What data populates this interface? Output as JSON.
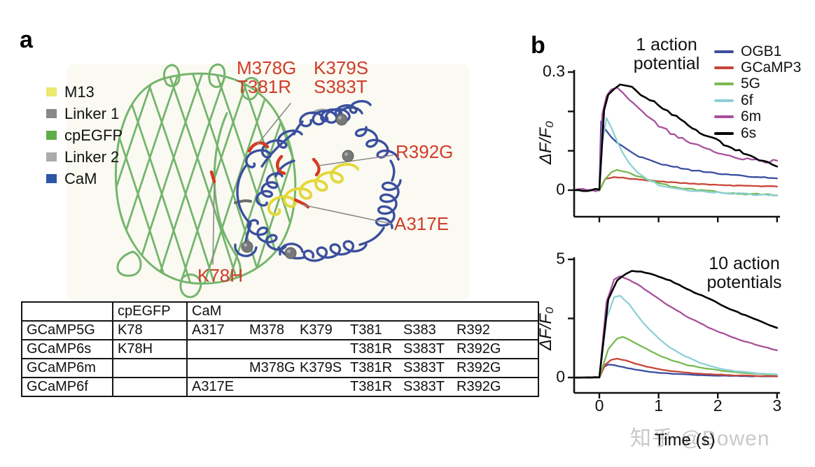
{
  "figure": {
    "panel_a_label": "a",
    "panel_b_label": "b",
    "watermark": "知乎 @Bowen"
  },
  "panel_a": {
    "legend": {
      "items": [
        {
          "label": "M13",
          "color": "#ece96d"
        },
        {
          "label": "Linker 1",
          "color": "#87888a"
        },
        {
          "label": "cpEGFP",
          "color": "#5fae4a"
        },
        {
          "label": "Linker 2",
          "color": "#aaacae"
        },
        {
          "label": "CaM",
          "color": "#2d55a5"
        }
      ]
    },
    "structure_colors": {
      "cpegfp_mesh": "#74b56d",
      "cam_coil": "#3a4f9e",
      "m13_helix": "#e3d83c",
      "linker1": "#6a6c6e",
      "linker2": "#a9abae",
      "calcium_sphere": "#76787a",
      "mutation_mark": "#d23b22",
      "leader_line": "#8b8b8b",
      "label_red": "#d03b28"
    },
    "mutation_labels": [
      {
        "id": "m378g-t381r",
        "text": "M378G\nT381R"
      },
      {
        "id": "k379s-s383t",
        "text": "K379S\nS383T"
      },
      {
        "id": "r392g",
        "text": "R392G"
      },
      {
        "id": "a317e",
        "text": "A317E"
      },
      {
        "id": "k78h",
        "text": "K78H"
      }
    ],
    "table": {
      "header": {
        "col1": "",
        "col2": "cpEGFP",
        "col3": "CaM"
      },
      "rows": [
        {
          "name": "GCaMP5G",
          "cpegfp": "K78",
          "cam": [
            "A317",
            "M378",
            "K379",
            "T381",
            "S383",
            "R392"
          ]
        },
        {
          "name": "GCaMP6s",
          "cpegfp": "K78H",
          "cam": [
            "",
            "",
            "",
            "T381R",
            "S383T",
            "R392G"
          ]
        },
        {
          "name": "GCaMP6m",
          "cpegfp": "",
          "cam": [
            "",
            "M378G",
            "K379S",
            "T381R",
            "S383T",
            "R392G"
          ]
        },
        {
          "name": "GCaMP6f",
          "cpegfp": "",
          "cam": [
            "A317E",
            "",
            "",
            "T381R",
            "S383T",
            "R392G"
          ]
        }
      ]
    }
  },
  "chart_data": [
    {
      "type": "line",
      "title": "1 action\npotential",
      "ylabel": "ΔF/F₀",
      "xlabel": "",
      "xlim": [
        -0.43,
        3.0
      ],
      "ylim": [
        -0.067,
        0.3
      ],
      "xticks": [
        0,
        1,
        2,
        3
      ],
      "xtick_labels": [
        "",
        "",
        "",
        ""
      ],
      "yticks": [
        0,
        0.1,
        0.2,
        0.3
      ],
      "ytick_labels": [
        "0",
        "",
        "",
        "0.3"
      ],
      "legend": "upper right",
      "series": [
        {
          "name": "OGB1",
          "color": "#3a4f9f",
          "noise": 0.0015,
          "points": [
            [
              -0.43,
              0
            ],
            [
              -0.2,
              0
            ],
            [
              0,
              0
            ],
            [
              0.03,
              0.175
            ],
            [
              0.1,
              0.155
            ],
            [
              0.2,
              0.135
            ],
            [
              0.3,
              0.12
            ],
            [
              0.45,
              0.105
            ],
            [
              0.6,
              0.09
            ],
            [
              0.8,
              0.078
            ],
            [
              1.0,
              0.068
            ],
            [
              1.25,
              0.06
            ],
            [
              1.5,
              0.052
            ],
            [
              1.75,
              0.047
            ],
            [
              2.0,
              0.042
            ],
            [
              2.3,
              0.038
            ],
            [
              2.6,
              0.034
            ],
            [
              2.85,
              0.032
            ],
            [
              3.0,
              0.03
            ]
          ]
        },
        {
          "name": "GCaMP3",
          "color": "#c84638",
          "noise": 0.001,
          "points": [
            [
              -0.43,
              0
            ],
            [
              -0.2,
              0
            ],
            [
              0,
              0
            ],
            [
              0.1,
              0.028
            ],
            [
              0.25,
              0.033
            ],
            [
              0.4,
              0.031
            ],
            [
              0.6,
              0.028
            ],
            [
              0.8,
              0.025
            ],
            [
              1.0,
              0.022
            ],
            [
              1.3,
              0.019
            ],
            [
              1.6,
              0.016
            ],
            [
              2.0,
              0.013
            ],
            [
              2.4,
              0.011
            ],
            [
              2.8,
              0.01
            ],
            [
              3.0,
              0.009
            ]
          ]
        },
        {
          "name": "5G",
          "color": "#7ab953",
          "noise": 0.002,
          "points": [
            [
              -0.43,
              0
            ],
            [
              -0.2,
              0
            ],
            [
              0,
              0
            ],
            [
              0.1,
              0.03
            ],
            [
              0.2,
              0.045
            ],
            [
              0.3,
              0.05
            ],
            [
              0.45,
              0.045
            ],
            [
              0.6,
              0.038
            ],
            [
              0.8,
              0.028
            ],
            [
              1.0,
              0.018
            ],
            [
              1.2,
              0.01
            ],
            [
              1.5,
              0.003
            ],
            [
              1.8,
              -0.002
            ],
            [
              2.2,
              -0.007
            ],
            [
              2.6,
              -0.01
            ],
            [
              3.0,
              -0.013
            ]
          ]
        },
        {
          "name": "6f",
          "color": "#8ed0d6",
          "noise": 0.002,
          "points": [
            [
              -0.43,
              0
            ],
            [
              -0.2,
              0
            ],
            [
              0,
              0
            ],
            [
              0.05,
              0.12
            ],
            [
              0.12,
              0.185
            ],
            [
              0.2,
              0.16
            ],
            [
              0.3,
              0.125
            ],
            [
              0.4,
              0.095
            ],
            [
              0.5,
              0.07
            ],
            [
              0.65,
              0.045
            ],
            [
              0.8,
              0.028
            ],
            [
              1.0,
              0.014
            ],
            [
              1.2,
              0.006
            ],
            [
              1.5,
              0.0
            ],
            [
              1.8,
              -0.004
            ],
            [
              2.2,
              -0.008
            ],
            [
              2.6,
              -0.011
            ],
            [
              3.0,
              -0.014
            ]
          ]
        },
        {
          "name": "6m",
          "color": "#a8519c",
          "noise": 0.004,
          "points": [
            [
              -0.43,
              0
            ],
            [
              -0.2,
              0
            ],
            [
              0,
              0
            ],
            [
              0.05,
              0.19
            ],
            [
              0.12,
              0.24
            ],
            [
              0.2,
              0.255
            ],
            [
              0.3,
              0.26
            ],
            [
              0.4,
              0.245
            ],
            [
              0.5,
              0.23
            ],
            [
              0.65,
              0.21
            ],
            [
              0.8,
              0.19
            ],
            [
              1.0,
              0.165
            ],
            [
              1.2,
              0.145
            ],
            [
              1.4,
              0.13
            ],
            [
              1.6,
              0.115
            ],
            [
              1.8,
              0.105
            ],
            [
              2.0,
              0.095
            ],
            [
              2.2,
              0.087
            ],
            [
              2.5,
              0.078
            ],
            [
              2.8,
              0.072
            ],
            [
              3.0,
              0.075
            ]
          ]
        },
        {
          "name": "6s",
          "color": "#000000",
          "noise": 0.004,
          "points": [
            [
              -0.43,
              0
            ],
            [
              -0.2,
              0
            ],
            [
              0,
              0
            ],
            [
              0.08,
              0.2
            ],
            [
              0.15,
              0.24
            ],
            [
              0.25,
              0.26
            ],
            [
              0.35,
              0.27
            ],
            [
              0.45,
              0.265
            ],
            [
              0.55,
              0.26
            ],
            [
              0.7,
              0.245
            ],
            [
              0.85,
              0.23
            ],
            [
              1.0,
              0.215
            ],
            [
              1.15,
              0.2
            ],
            [
              1.3,
              0.185
            ],
            [
              1.5,
              0.165
            ],
            [
              1.7,
              0.148
            ],
            [
              1.9,
              0.132
            ],
            [
              2.1,
              0.118
            ],
            [
              2.3,
              0.104
            ],
            [
              2.5,
              0.09
            ],
            [
              2.7,
              0.078
            ],
            [
              2.85,
              0.068
            ],
            [
              3.0,
              0.06
            ]
          ]
        }
      ]
    },
    {
      "type": "line",
      "title": "10 action\npotentials",
      "ylabel": "ΔF/F₀",
      "xlabel": "Time (s)",
      "xlim": [
        -0.43,
        3.0
      ],
      "ylim": [
        -0.65,
        5
      ],
      "xticks": [
        0,
        1,
        2,
        3
      ],
      "xtick_labels": [
        "0",
        "1",
        "2",
        "3"
      ],
      "yticks": [
        0,
        2.5,
        5
      ],
      "ytick_labels": [
        "0",
        "",
        "5"
      ],
      "legend": "none",
      "series": [
        {
          "name": "OGB1",
          "color": "#3a4f9f",
          "noise": 0.008,
          "points": [
            [
              -0.43,
              0
            ],
            [
              -0.2,
              0
            ],
            [
              0,
              0
            ],
            [
              0.08,
              0.45
            ],
            [
              0.15,
              0.55
            ],
            [
              0.25,
              0.52
            ],
            [
              0.4,
              0.44
            ],
            [
              0.6,
              0.34
            ],
            [
              0.8,
              0.26
            ],
            [
              1.0,
              0.2
            ],
            [
              1.3,
              0.15
            ],
            [
              1.6,
              0.11
            ],
            [
              2.0,
              0.08
            ],
            [
              2.4,
              0.06
            ],
            [
              2.8,
              0.05
            ],
            [
              3.0,
              0.045
            ]
          ]
        },
        {
          "name": "GCaMP3",
          "color": "#c84638",
          "noise": 0.008,
          "points": [
            [
              -0.43,
              0
            ],
            [
              -0.2,
              0
            ],
            [
              0,
              0
            ],
            [
              0.1,
              0.55
            ],
            [
              0.2,
              0.75
            ],
            [
              0.3,
              0.8
            ],
            [
              0.45,
              0.72
            ],
            [
              0.6,
              0.6
            ],
            [
              0.8,
              0.46
            ],
            [
              1.0,
              0.36
            ],
            [
              1.2,
              0.28
            ],
            [
              1.5,
              0.2
            ],
            [
              1.8,
              0.15
            ],
            [
              2.2,
              0.1
            ],
            [
              2.6,
              0.07
            ],
            [
              3.0,
              0.05
            ]
          ]
        },
        {
          "name": "5G",
          "color": "#7ab953",
          "noise": 0.012,
          "points": [
            [
              -0.43,
              0
            ],
            [
              -0.2,
              0
            ],
            [
              0,
              0
            ],
            [
              0.15,
              1.2
            ],
            [
              0.3,
              1.65
            ],
            [
              0.4,
              1.72
            ],
            [
              0.5,
              1.6
            ],
            [
              0.65,
              1.4
            ],
            [
              0.8,
              1.2
            ],
            [
              1.0,
              0.95
            ],
            [
              1.2,
              0.75
            ],
            [
              1.5,
              0.52
            ],
            [
              1.8,
              0.38
            ],
            [
              2.1,
              0.27
            ],
            [
              2.4,
              0.2
            ],
            [
              2.7,
              0.15
            ],
            [
              3.0,
              0.12
            ]
          ]
        },
        {
          "name": "6f",
          "color": "#8ed0d6",
          "noise": 0.012,
          "points": [
            [
              -0.43,
              0
            ],
            [
              -0.2,
              0
            ],
            [
              0,
              0
            ],
            [
              0.12,
              2.5
            ],
            [
              0.25,
              3.4
            ],
            [
              0.35,
              3.45
            ],
            [
              0.5,
              3.1
            ],
            [
              0.65,
              2.6
            ],
            [
              0.8,
              2.15
            ],
            [
              1.0,
              1.65
            ],
            [
              1.2,
              1.25
            ],
            [
              1.45,
              0.9
            ],
            [
              1.7,
              0.62
            ],
            [
              2.0,
              0.4
            ],
            [
              2.3,
              0.27
            ],
            [
              2.6,
              0.19
            ],
            [
              3.0,
              0.13
            ]
          ]
        },
        {
          "name": "6m",
          "color": "#a8519c",
          "noise": 0.015,
          "points": [
            [
              -0.43,
              0
            ],
            [
              -0.2,
              0
            ],
            [
              0,
              0
            ],
            [
              0.12,
              3.2
            ],
            [
              0.25,
              4.15
            ],
            [
              0.35,
              4.3
            ],
            [
              0.5,
              4.15
            ],
            [
              0.7,
              3.85
            ],
            [
              0.9,
              3.5
            ],
            [
              1.1,
              3.15
            ],
            [
              1.3,
              2.85
            ],
            [
              1.5,
              2.55
            ],
            [
              1.7,
              2.3
            ],
            [
              1.9,
              2.05
            ],
            [
              2.1,
              1.85
            ],
            [
              2.3,
              1.65
            ],
            [
              2.5,
              1.5
            ],
            [
              2.7,
              1.35
            ],
            [
              2.85,
              1.25
            ],
            [
              3.0,
              1.15
            ]
          ]
        },
        {
          "name": "6s",
          "color": "#000000",
          "noise": 0.015,
          "points": [
            [
              -0.43,
              0
            ],
            [
              -0.2,
              0
            ],
            [
              0,
              0
            ],
            [
              0.15,
              3.3
            ],
            [
              0.3,
              4.1
            ],
            [
              0.45,
              4.4
            ],
            [
              0.55,
              4.5
            ],
            [
              0.7,
              4.48
            ],
            [
              0.85,
              4.4
            ],
            [
              1.0,
              4.28
            ],
            [
              1.2,
              4.1
            ],
            [
              1.4,
              3.85
            ],
            [
              1.6,
              3.6
            ],
            [
              1.8,
              3.4
            ],
            [
              2.0,
              3.15
            ],
            [
              2.2,
              2.9
            ],
            [
              2.4,
              2.7
            ],
            [
              2.6,
              2.5
            ],
            [
              2.8,
              2.3
            ],
            [
              3.0,
              2.1
            ]
          ]
        }
      ]
    }
  ]
}
